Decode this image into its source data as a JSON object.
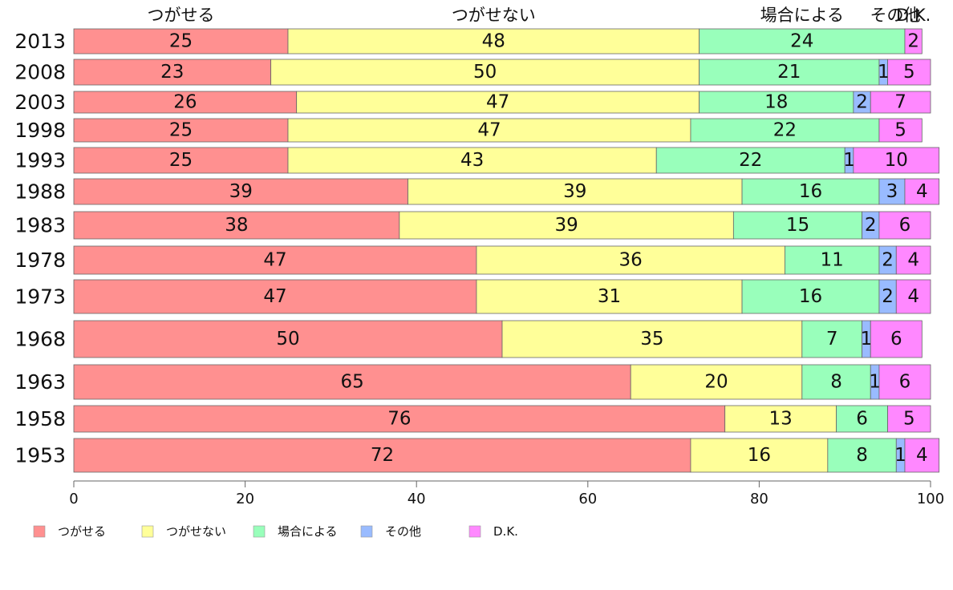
{
  "chart_data": {
    "type": "bar",
    "orientation": "horizontal",
    "stacked": true,
    "percent": true,
    "categories": [
      "2013",
      "2008",
      "2003",
      "1998",
      "1993",
      "1988",
      "1983",
      "1978",
      "1973",
      "1968",
      "1963",
      "1958",
      "1953"
    ],
    "series": [
      {
        "name": "つがせる",
        "color": "#ff9090",
        "values": [
          25,
          23,
          26,
          25,
          25,
          39,
          38,
          47,
          47,
          50,
          65,
          76,
          72
        ]
      },
      {
        "name": "つがせない",
        "color": "#ffff99",
        "values": [
          48,
          50,
          47,
          47,
          43,
          39,
          39,
          36,
          31,
          35,
          20,
          13,
          16
        ]
      },
      {
        "name": "場合による",
        "color": "#99ffbb",
        "values": [
          24,
          21,
          18,
          22,
          22,
          16,
          15,
          11,
          16,
          7,
          8,
          6,
          8
        ]
      },
      {
        "name": "その他",
        "color": "#99bbff",
        "values": [
          0,
          1,
          2,
          0,
          1,
          3,
          2,
          2,
          2,
          1,
          1,
          0,
          1
        ]
      },
      {
        "name": "D.K.",
        "color": "#ff88ff",
        "values": [
          2,
          5,
          7,
          5,
          10,
          4,
          6,
          4,
          4,
          6,
          6,
          5,
          4
        ]
      }
    ],
    "column_headers": [
      "つがせる",
      "つがせない",
      "場合による",
      "その他",
      "D.K."
    ],
    "xlim": [
      0,
      100
    ],
    "x_ticks": [
      0,
      20,
      40,
      60,
      80,
      100
    ],
    "grid": false,
    "legend": "bottom-left"
  }
}
